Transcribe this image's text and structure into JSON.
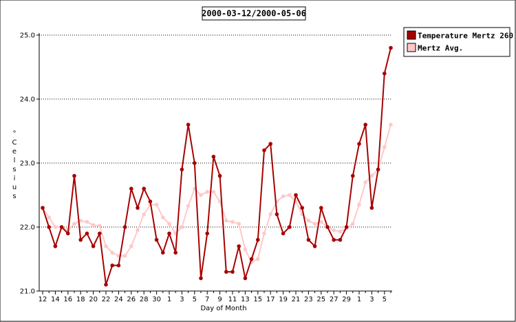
{
  "chart_data": {
    "type": "line",
    "title": "2000-03-12/2000-05-06",
    "xlabel": "Day of Month",
    "ylabel": "° Celsius",
    "ylim": [
      21.0,
      25.0
    ],
    "yticks": [
      "21.0",
      "22.0",
      "23.0",
      "24.0",
      "25.0"
    ],
    "grid": true,
    "legend_position": "top-right",
    "x": [
      "12",
      "13",
      "14",
      "15",
      "16",
      "17",
      "18",
      "19",
      "20",
      "21",
      "22",
      "23",
      "24",
      "25",
      "26",
      "27",
      "28",
      "29",
      "30",
      "31",
      "1",
      "2",
      "3",
      "4",
      "5",
      "6",
      "7",
      "8",
      "9",
      "10",
      "11",
      "12",
      "13",
      "14",
      "15",
      "16",
      "17",
      "18",
      "19",
      "20",
      "21",
      "22",
      "23",
      "24",
      "25",
      "26",
      "27",
      "28",
      "29",
      "30",
      "1",
      "2",
      "3",
      "4",
      "5",
      "6"
    ],
    "xtick_labels": [
      "12",
      "14",
      "16",
      "18",
      "20",
      "22",
      "24",
      "26",
      "28",
      "30",
      "1",
      "3",
      "5",
      "7",
      "9",
      "11",
      "13",
      "15",
      "17",
      "19",
      "21",
      "23",
      "25",
      "27",
      "29",
      "1",
      "3",
      "5"
    ],
    "series": [
      {
        "name": "Temperature Mertz 260",
        "color": "#a80000",
        "values": [
          22.3,
          22.0,
          21.7,
          22.0,
          21.9,
          22.8,
          21.8,
          21.9,
          21.7,
          21.9,
          21.1,
          21.4,
          21.4,
          22.0,
          22.6,
          22.3,
          22.6,
          22.4,
          21.8,
          21.6,
          21.9,
          21.6,
          22.9,
          23.6,
          23.0,
          21.2,
          21.9,
          23.1,
          22.8,
          21.3,
          21.3,
          21.7,
          21.2,
          21.5,
          21.8,
          23.2,
          23.3,
          22.2,
          21.9,
          22.0,
          22.5,
          22.3,
          21.8,
          21.7,
          22.3,
          22.0,
          21.8,
          21.8,
          22.0,
          22.8,
          23.3,
          23.6,
          22.3,
          22.9,
          24.4,
          24.8
        ]
      },
      {
        "name": "Mertz Avg.",
        "color": "#ffc8c8",
        "values": [
          22.3,
          22.15,
          22.0,
          22.0,
          21.95,
          22.05,
          22.1,
          22.08,
          22.03,
          22.02,
          21.7,
          21.6,
          21.55,
          21.55,
          21.7,
          21.95,
          22.2,
          22.35,
          22.35,
          22.15,
          22.05,
          21.9,
          22.0,
          22.33,
          22.6,
          22.5,
          22.55,
          22.55,
          22.4,
          22.1,
          22.08,
          22.05,
          21.65,
          21.45,
          21.5,
          21.9,
          22.2,
          22.4,
          22.48,
          22.5,
          22.4,
          22.2,
          22.1,
          22.05,
          22.08,
          22.0,
          21.95,
          21.93,
          21.98,
          22.05,
          22.35,
          22.7,
          22.8,
          22.9,
          23.25,
          23.6
        ]
      }
    ]
  }
}
